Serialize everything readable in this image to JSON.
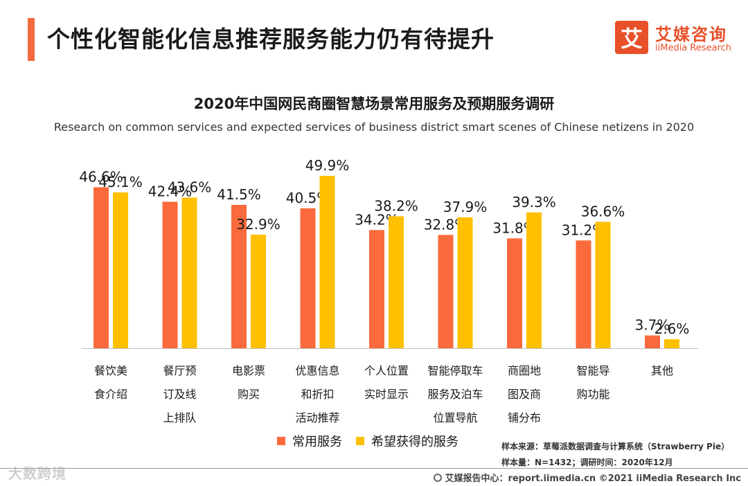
{
  "header": {
    "title": "个性化智能化信息推荐服务能力仍有待提升",
    "logo_mark": "艾",
    "logo_cn": "艾媒咨询",
    "logo_en": "iiMedia Research"
  },
  "colors": {
    "accent": "#f26a3d",
    "series1": "#fa6a3c",
    "series2": "#fec000",
    "logo": "#e8502a"
  },
  "chart_data": {
    "type": "bar",
    "title": "2020年中国网民商圈智慧场景常用服务及预期服务调研",
    "subtitle": "Research on common services and expected services of business district smart scenes of Chinese netizens in 2020",
    "xlabel": "",
    "ylabel": "",
    "ylim": [
      0,
      55
    ],
    "grid": false,
    "legend_position": "bottom",
    "unit": "%",
    "categories": [
      [
        "餐饮美",
        "食介绍"
      ],
      [
        "餐厅预",
        "订及线",
        "上排队"
      ],
      [
        "电影票",
        "购买"
      ],
      [
        "优惠信息",
        "和折扣",
        "活动推荐"
      ],
      [
        "个人位置",
        "实时显示"
      ],
      [
        "智能停取车",
        "服务及泊车",
        "位置导航"
      ],
      [
        "商圈地",
        "图及商",
        "铺分布"
      ],
      [
        "智能导",
        "购功能"
      ],
      [
        "其他"
      ]
    ],
    "series": [
      {
        "name": "常用服务",
        "values": [
          46.6,
          42.4,
          41.5,
          40.5,
          34.2,
          32.8,
          31.8,
          31.2,
          3.7
        ]
      },
      {
        "name": "希望获得的服务",
        "values": [
          45.1,
          43.6,
          32.9,
          49.9,
          38.2,
          37.9,
          39.3,
          36.6,
          2.6
        ]
      }
    ]
  },
  "notes": {
    "source": "样本来源：草莓派数据调查与计算系统（Strawberry Pie）",
    "sample": "样本量：N=1432；调研时间：2020年12月"
  },
  "watermark": "大数跨境",
  "footer": "艾媒报告中心：report.iimedia.cn   ©2021  iiMedia Research  Inc"
}
